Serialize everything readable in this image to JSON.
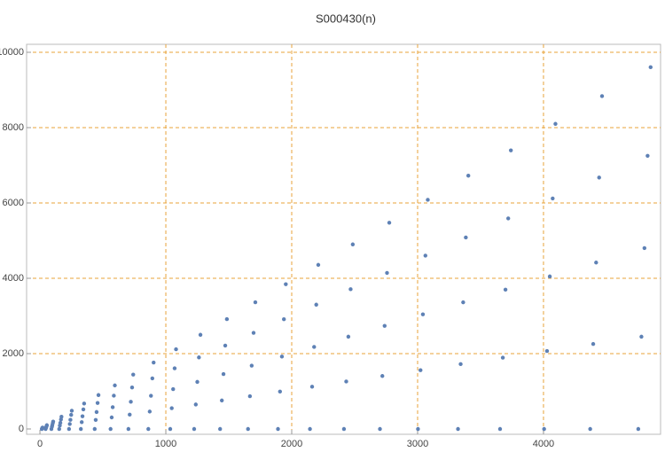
{
  "chart_data": {
    "type": "scatter",
    "title": "S000430(n)",
    "x": [
      15,
      17,
      18,
      20,
      21,
      45,
      48,
      50,
      53,
      55,
      91,
      95,
      98,
      102,
      105,
      153,
      158,
      162,
      167,
      171,
      231,
      237,
      242,
      248,
      253,
      325,
      332,
      338,
      345,
      351,
      435,
      443,
      450,
      458,
      465,
      561,
      570,
      578,
      587,
      595,
      703,
      713,
      722,
      732,
      741,
      861,
      872,
      882,
      893,
      903,
      1035,
      1047,
      1058,
      1070,
      1081,
      1225,
      1238,
      1250,
      1263,
      1275,
      1431,
      1445,
      1458,
      1472,
      1485,
      1653,
      1668,
      1682,
      1697,
      1711,
      1891,
      1907,
      1922,
      1938,
      1953,
      2145,
      2162,
      2178,
      2195,
      2211,
      2415,
      2433,
      2450,
      2468,
      2485,
      2701,
      2720,
      2738,
      2757,
      2775,
      3003,
      3023,
      3042,
      3062,
      3081,
      3321,
      3342,
      3362,
      3383,
      3403,
      3655,
      3677,
      3698,
      3720,
      3741,
      4005,
      4028,
      4050,
      4073,
      4095,
      4371,
      4395,
      4418,
      4442,
      4465,
      4753,
      4778,
      4802,
      4827,
      4851
    ],
    "values": [
      0,
      12,
      18,
      30,
      36,
      0,
      30,
      50,
      80,
      100,
      0,
      56,
      98,
      154,
      196,
      0,
      90,
      162,
      252,
      324,
      0,
      132,
      242,
      374,
      484,
      0,
      182,
      338,
      520,
      676,
      0,
      240,
      450,
      690,
      900,
      0,
      306,
      578,
      884,
      1156,
      0,
      380,
      722,
      1102,
      1444,
      0,
      462,
      882,
      1344,
      1764,
      0,
      552,
      1058,
      1610,
      2116,
      0,
      650,
      1250,
      1900,
      2500,
      0,
      756,
      1458,
      2214,
      2916,
      0,
      870,
      1682,
      2552,
      3364,
      0,
      992,
      1922,
      2914,
      3844,
      0,
      1122,
      2178,
      3300,
      4356,
      0,
      1260,
      2450,
      3710,
      4900,
      0,
      1406,
      2738,
      4144,
      5476,
      0,
      1560,
      3042,
      4602,
      6084,
      0,
      1722,
      3362,
      5084,
      6724,
      0,
      1892,
      3698,
      5590,
      7396,
      0,
      2070,
      4050,
      6120,
      8100,
      0,
      2256,
      4418,
      6674,
      8836,
      0,
      2450,
      4802,
      7252,
      9604
    ],
    "color": "#5e81b5",
    "grid_color": "#e8a33a",
    "grid": true,
    "xlim": [
      -106,
      4930
    ],
    "xticks": [
      0,
      1000,
      2000,
      3000,
      4000
    ],
    "ylim": [
      -141,
      10212
    ],
    "yticks": [
      0,
      2000,
      4000,
      6000,
      8000,
      10000
    ]
  }
}
